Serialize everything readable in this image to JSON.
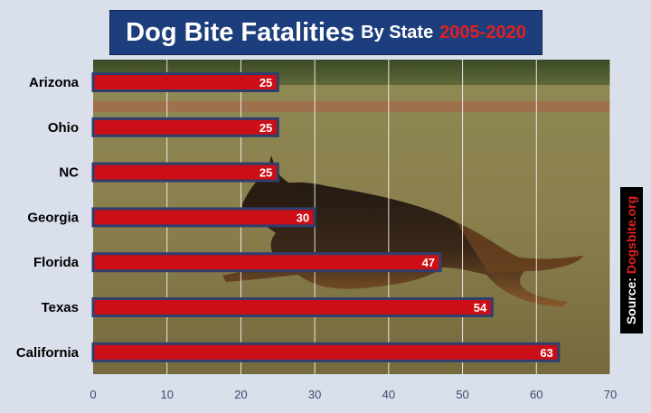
{
  "title": {
    "main": "Dog Bite Fatalities",
    "sub": "By State",
    "years": "2005-2020"
  },
  "source": {
    "label": "Source:",
    "site": "Dogsbite.org"
  },
  "colors": {
    "bar": "#cc0e16",
    "bar_border": "#2e3f6e",
    "title_bg": "#1d3e7c",
    "accent_red": "#e02020",
    "background": "#d9dfeb"
  },
  "chart_data": {
    "type": "bar",
    "orientation": "horizontal",
    "categories": [
      "Arizona",
      "Ohio",
      "NC",
      "Georgia",
      "Florida",
      "Texas",
      "California"
    ],
    "values": [
      25,
      25,
      25,
      30,
      47,
      54,
      63
    ],
    "xlim": [
      0,
      70
    ],
    "x_ticks": [
      0,
      10,
      20,
      30,
      40,
      50,
      60,
      70
    ],
    "grid": true,
    "data_labels": true
  }
}
